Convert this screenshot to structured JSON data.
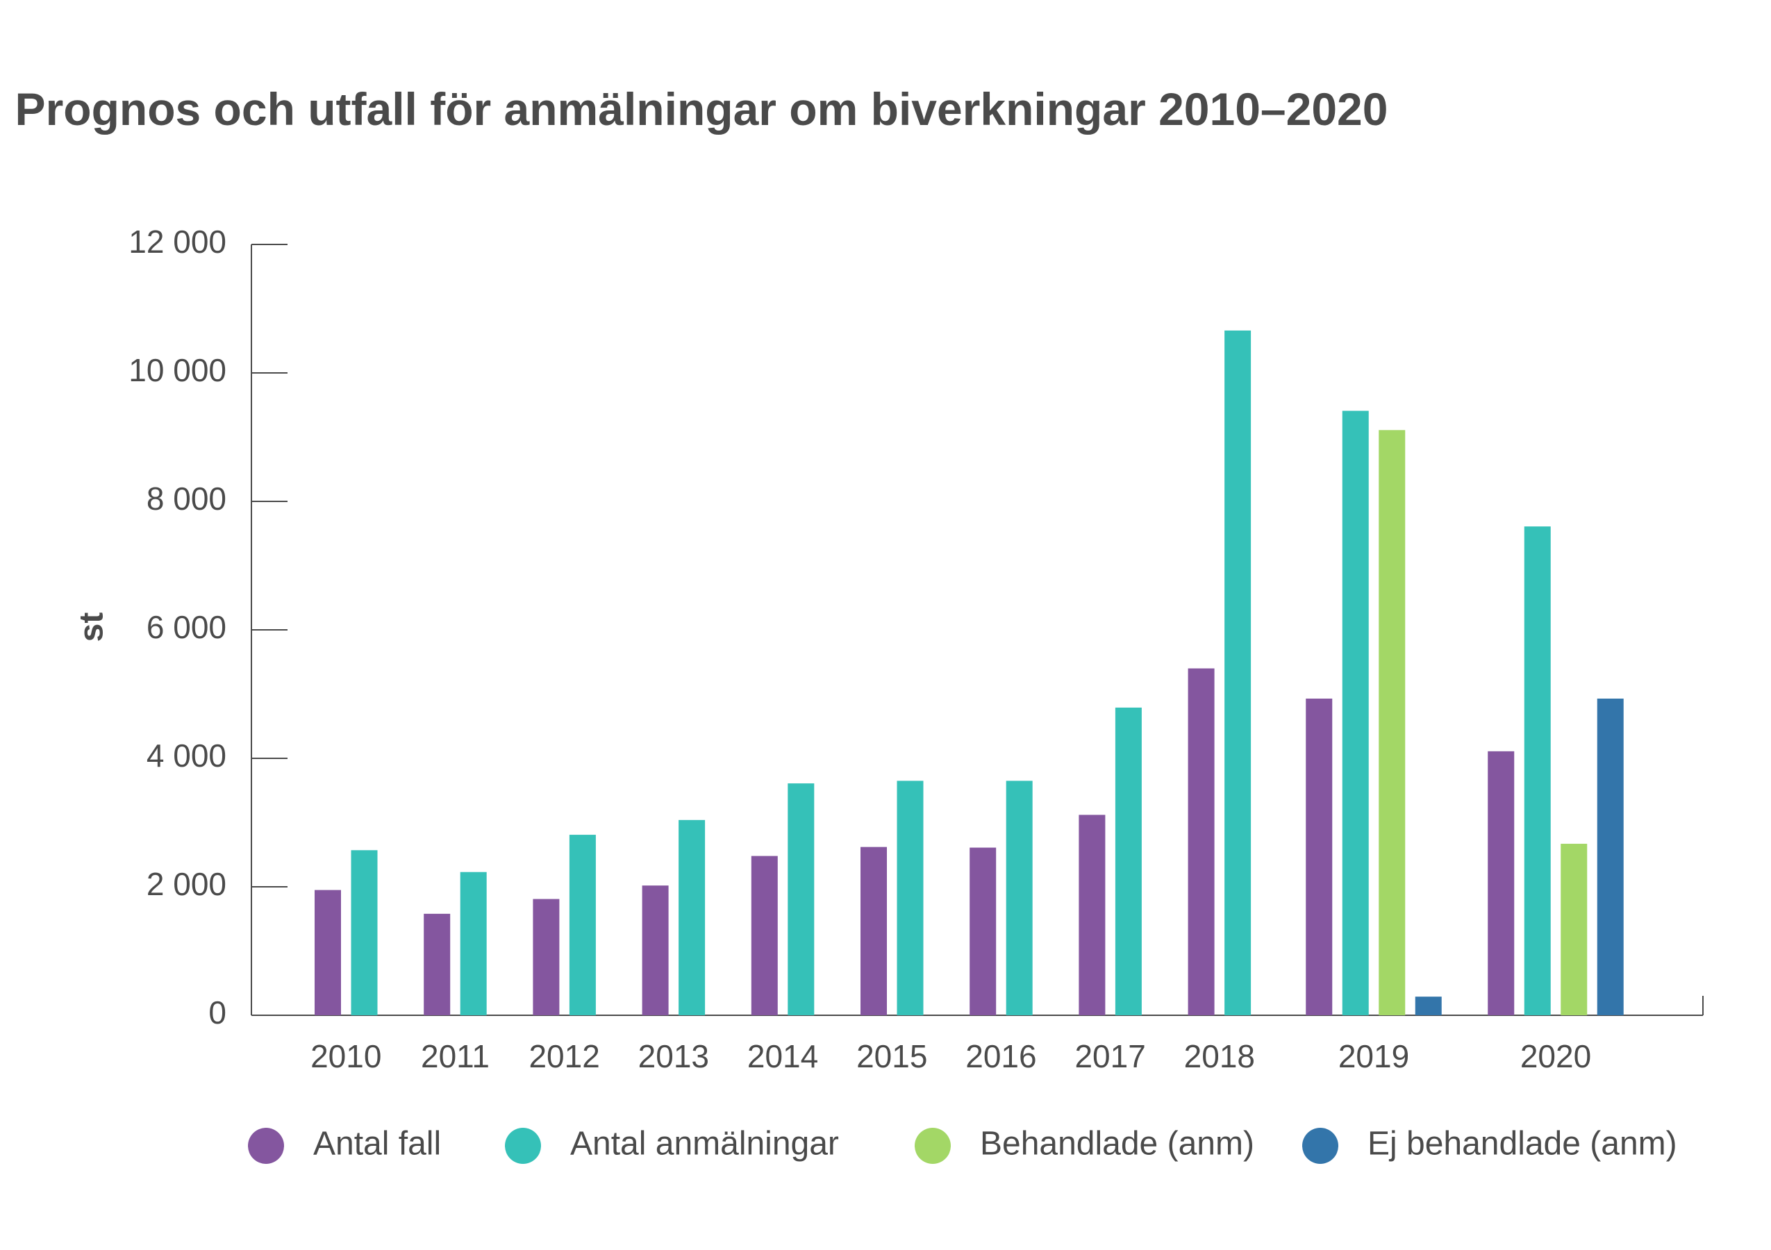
{
  "chart_data": {
    "type": "bar",
    "title": "Prognos och utfall för anmälningar om biverkningar 2010–2020",
    "xlabel": "",
    "ylabel": "st",
    "ylim": [
      0,
      12000
    ],
    "yticks": [
      0,
      2000,
      4000,
      6000,
      8000,
      10000,
      12000
    ],
    "ytick_labels": [
      "0",
      "2 000",
      "4 000",
      "6 000",
      "8 000",
      "10 000",
      "12 000"
    ],
    "categories": [
      "2010",
      "2011",
      "2012",
      "2013",
      "2014",
      "2015",
      "2016",
      "2017",
      "2018",
      "2019",
      "2020"
    ],
    "series": [
      {
        "name": "Antal fall",
        "color": "#84569f",
        "values": [
          1950,
          1580,
          1810,
          2020,
          2480,
          2620,
          2610,
          3120,
          5400,
          4930,
          4110
        ]
      },
      {
        "name": "Antal anmälningar",
        "color": "#35c1b8",
        "values": [
          2570,
          2230,
          2810,
          3040,
          3610,
          3650,
          3650,
          4790,
          10660,
          9410,
          7610
        ]
      },
      {
        "name": "Behandlade (anm)",
        "color": "#a3d766",
        "values": [
          null,
          null,
          null,
          null,
          null,
          null,
          null,
          null,
          null,
          9110,
          2670
        ]
      },
      {
        "name": "Ej behandlade (anm)",
        "color": "#3375aa",
        "values": [
          null,
          null,
          null,
          null,
          null,
          null,
          null,
          null,
          null,
          290,
          4930
        ]
      }
    ],
    "legend_position": "bottom",
    "grid": false
  }
}
